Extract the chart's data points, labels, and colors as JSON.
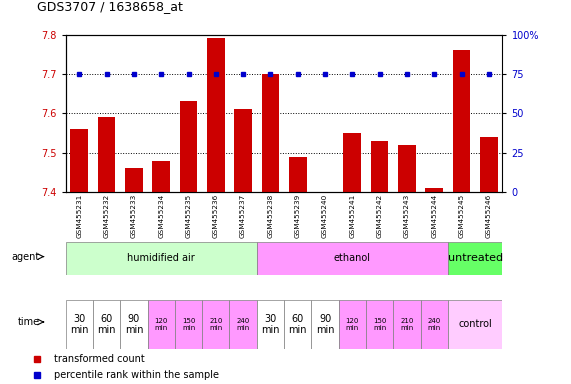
{
  "title": "GDS3707 / 1638658_at",
  "samples": [
    "GSM455231",
    "GSM455232",
    "GSM455233",
    "GSM455234",
    "GSM455235",
    "GSM455236",
    "GSM455237",
    "GSM455238",
    "GSM455239",
    "GSM455240",
    "GSM455241",
    "GSM455242",
    "GSM455243",
    "GSM455244",
    "GSM455245",
    "GSM455246"
  ],
  "red_values": [
    7.56,
    7.59,
    7.46,
    7.48,
    7.63,
    7.79,
    7.61,
    7.7,
    7.49,
    7.4,
    7.55,
    7.53,
    7.52,
    7.41,
    7.76,
    7.54
  ],
  "blue_values": [
    75,
    75,
    75,
    75,
    75,
    75,
    75,
    75,
    75,
    75,
    75,
    75,
    75,
    75,
    75,
    75
  ],
  "ylim_left": [
    7.4,
    7.8
  ],
  "ylim_right": [
    0,
    100
  ],
  "yticks_left": [
    7.4,
    7.5,
    7.6,
    7.7,
    7.8
  ],
  "yticks_right": [
    0,
    25,
    50,
    75,
    100
  ],
  "ytick_labels_right": [
    "0",
    "25",
    "50",
    "75",
    "100%"
  ],
  "hlines": [
    7.5,
    7.6,
    7.7
  ],
  "agent_labels": [
    "humidified air",
    "ethanol",
    "untreated"
  ],
  "agent_colors": [
    "#ccffcc",
    "#ff99ff",
    "#66ff66"
  ],
  "time_values": [
    "30\nmin",
    "60\nmin",
    "90\nmin",
    "120\nmin",
    "150\nmin",
    "210\nmin",
    "240\nmin",
    "30\nmin",
    "60\nmin",
    "90\nmin",
    "120\nmin",
    "150\nmin",
    "210\nmin",
    "240\nmin"
  ],
  "time_colors": [
    "#ffffff",
    "#ffffff",
    "#ffffff",
    "#ff99ff",
    "#ff99ff",
    "#ff99ff",
    "#ff99ff",
    "#ffffff",
    "#ffffff",
    "#ffffff",
    "#ff99ff",
    "#ff99ff",
    "#ff99ff",
    "#ff99ff"
  ],
  "time_small_indices": [
    3,
    4,
    5,
    6,
    10,
    11,
    12,
    13
  ],
  "control_color": "#ffccff",
  "bar_color": "#cc0000",
  "dot_color": "#0000cc",
  "bg_color": "#ffffff",
  "grid_bg": "#f0f0f0",
  "legend_red": "transformed count",
  "legend_blue": "percentile rank within the sample"
}
